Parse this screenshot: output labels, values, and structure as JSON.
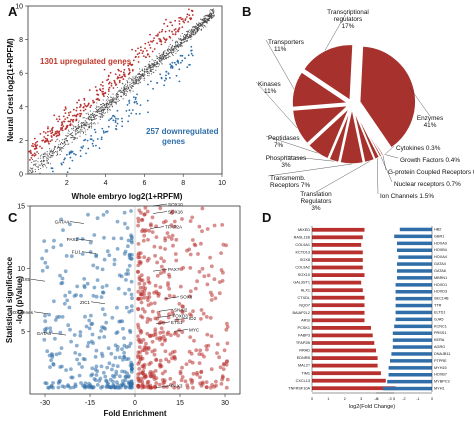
{
  "colors": {
    "red": "#b8312f",
    "blue": "#2f6ea8",
    "grey": "#555555",
    "pie": "#a7322d"
  },
  "chart_data": [
    {
      "panel": "A",
      "type": "scatter",
      "xlabel": "Whole embryo  log2(1+RPFM)",
      "ylabel": "Neural Crest  log2(1+RPFM)",
      "xlim": [
        0,
        10
      ],
      "ylim": [
        0,
        10
      ],
      "xticks": [
        "2",
        "4",
        "6",
        "8",
        "10"
      ],
      "yticks": [
        "0",
        "2",
        "4",
        "6",
        "8",
        "10"
      ],
      "annotations": [
        "1301 upregulated genes",
        "257 downregulated genes"
      ]
    },
    {
      "panel": "B",
      "type": "pie",
      "slices": [
        {
          "label": "Enzymes",
          "value_text": "41%",
          "value": 41
        },
        {
          "label": "Cytokines",
          "value_text": "0.3%",
          "value": 0.3
        },
        {
          "label": "Growth Factors",
          "value_text": "0.4%",
          "value": 0.4
        },
        {
          "label": "G-protein Coupled Receptors",
          "value_text": "0.6%",
          "value": 0.6
        },
        {
          "label": "Nuclear receptors",
          "value_text": "0.7%",
          "value": 0.7
        },
        {
          "label": "Ion Channels",
          "value_text": "1.5%",
          "value": 1.5
        },
        {
          "label": "Translation Regulators",
          "value_text": "3%",
          "value": 3
        },
        {
          "label": "Transmemb. Receptors",
          "value_text": "7%",
          "value": 7
        },
        {
          "label": "Phosphatases",
          "value_text": "3%",
          "value": 3
        },
        {
          "label": "Peptidases",
          "value_text": "7%",
          "value": 7
        },
        {
          "label": "Kinases",
          "value_text": "11%",
          "value": 11
        },
        {
          "label": "Transporters",
          "value_text": "11%",
          "value": 11
        },
        {
          "label": "Transcriptional regulators",
          "value_text": "17%",
          "value": 17
        }
      ]
    },
    {
      "panel": "C",
      "type": "scatter",
      "xlabel": "Fold Enrichment",
      "ylabel": "Statistical significance -log (pValue)",
      "xlim": [
        -35,
        35
      ],
      "ylim": [
        0,
        15
      ],
      "xticks": [
        "-30",
        "-15",
        "0",
        "15",
        "30"
      ],
      "yticks": [
        "5",
        "10",
        "15"
      ],
      "annotations": [
        {
          "text": "SOX10",
          "x": 6,
          "y": 15
        },
        {
          "text": "SOX16",
          "x": 6,
          "y": 14.4
        },
        {
          "text": "TFAP2A",
          "x": 5,
          "y": 13.2
        },
        {
          "text": "GATA4",
          "x": -17,
          "y": 13.6
        },
        {
          "text": "PAX2",
          "x": -14,
          "y": 12.2
        },
        {
          "text": "FLI1",
          "x": -13,
          "y": 11.2
        },
        {
          "text": "TBX5",
          "x": -30,
          "y": 9
        },
        {
          "text": "PAX7",
          "x": 6,
          "y": 9.8
        },
        {
          "text": "SOX8",
          "x": 10,
          "y": 7.6
        },
        {
          "text": "SNAI2",
          "x": 8,
          "y": 6.6
        },
        {
          "text": "FOXD3",
          "x": 7.5,
          "y": 6.1
        },
        {
          "text": "ETS1",
          "x": 7,
          "y": 5.6
        },
        {
          "text": "ID2",
          "x": 13,
          "y": 5.9
        },
        {
          "text": "MYC",
          "x": 13,
          "y": 5.0
        },
        {
          "text": "ZIC1",
          "x": -10,
          "y": 7.2
        },
        {
          "text": "HOX genes",
          "x": -29,
          "y": 6.4
        },
        {
          "text": "GATA6",
          "x": -23,
          "y": 4.7
        },
        {
          "text": "PAX3",
          "x": 7,
          "y": 0.5
        }
      ]
    },
    {
      "panel": "D",
      "type": "bar",
      "xlabel": "log2(Fold Change)",
      "xticks": [
        "0",
        "1",
        "2",
        "3",
        "4",
        "5",
        "-4",
        "-3",
        "-2",
        "-1",
        "0"
      ],
      "up": {
        "genes": [
          "MIXED",
          "RASL11B",
          "COL9A1",
          "KCTD13",
          "SOX8",
          "COL9A2",
          "SOX10",
          "GAL3ST1",
          "ALX1",
          "CTXDL",
          "NQO7",
          "BAIAP2L2",
          "ARSI",
          "PCSK1",
          "FABP3",
          "TFAP2B",
          "RRAD",
          "EDNRB",
          "MAL2?",
          "TIM1",
          "CXCL13",
          "TNFRSF10A"
        ],
        "values": [
          3.2,
          3.1,
          3.0,
          3.1,
          3.1,
          3.1,
          3.2,
          3.0,
          3.1,
          3.2,
          3.2,
          3.2,
          3.2,
          3.6,
          3.7,
          3.8,
          3.9,
          4.0,
          4.0,
          4.2,
          4.5,
          5.1
        ]
      },
      "down": {
        "genes": [
          "HB2",
          "GBR1",
          "HOXA3",
          "HOXB4",
          "HOXA4",
          "GATA4",
          "GATA6",
          "MBRN1",
          "HOXD1",
          "HOXD3",
          "SEC14B",
          "TTR",
          "ELTD1",
          "GJA5",
          "KCNC1",
          "PRSS1",
          "KERA",
          "AGRG",
          "DNAJB11",
          "PTPRE",
          "MYH15",
          "HOXB7",
          "MYBPC3",
          "MYH1"
        ],
        "values": [
          -2.3,
          -2.7,
          -2.5,
          -2.5,
          -2.4,
          -2.5,
          -2.5,
          -2.5,
          -2.6,
          -2.6,
          -2.6,
          -2.6,
          -2.6,
          -2.6,
          -2.7,
          -2.8,
          -2.8,
          -2.8,
          -2.9,
          -3.0,
          -3.1,
          -3.1,
          -3.2,
          -3.5
        ]
      }
    }
  ]
}
